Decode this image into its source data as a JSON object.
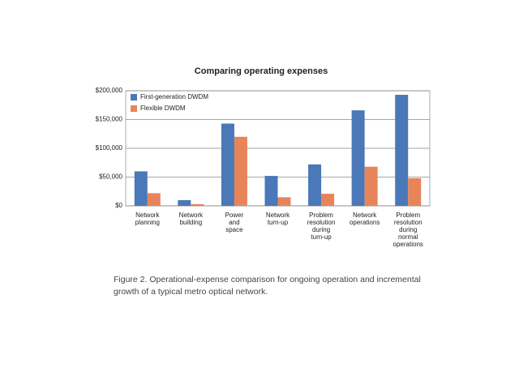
{
  "chart_data": {
    "type": "bar",
    "title": "Comparing operating expenses",
    "categories": [
      "Network planning",
      "Network building",
      "Power and space",
      "Network turn-up",
      "Problem resolution during turn-up",
      "Network operations",
      "Problem resolution during normal operations"
    ],
    "series": [
      {
        "name": "First-generation DWDM",
        "color": "#4a78b8",
        "values": [
          60000,
          10000,
          143000,
          52000,
          72000,
          166000,
          193000
        ]
      },
      {
        "name": "Flexible DWDM",
        "color": "#e8845a",
        "values": [
          22000,
          3000,
          120000,
          15000,
          21000,
          68000,
          48000
        ]
      }
    ],
    "ylim": [
      0,
      200000
    ],
    "yticks": [
      {
        "value": 0,
        "label": "$0"
      },
      {
        "value": 50000,
        "label": "$50,000"
      },
      {
        "value": 100000,
        "label": "$100,000"
      },
      {
        "value": 150000,
        "label": "$150,000"
      },
      {
        "value": 200000,
        "label": "$200,000"
      }
    ],
    "grid": true,
    "legend": "top-left",
    "caption": "Figure 2. Operational-expense comparison for ongoing operation and incremental growth of a typical metro optical network."
  }
}
